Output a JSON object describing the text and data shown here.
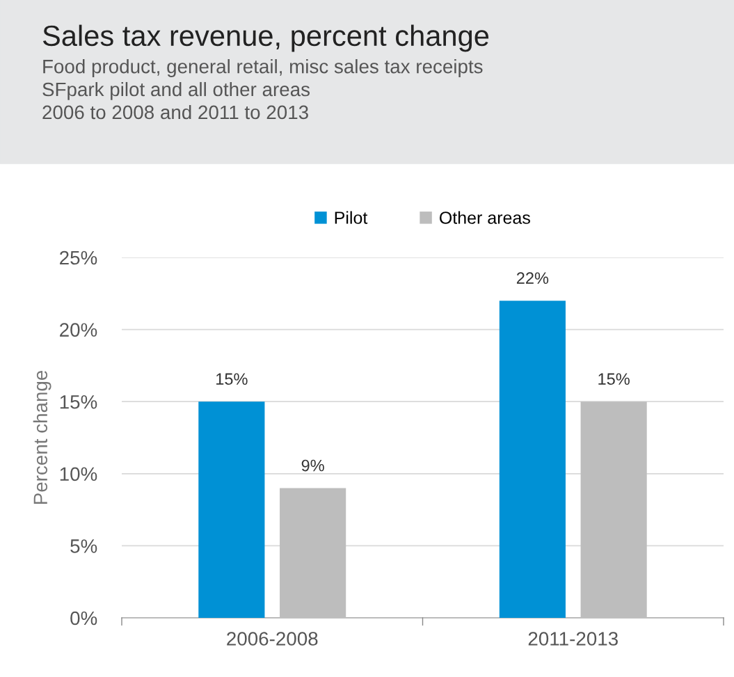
{
  "chart_data": {
    "type": "bar",
    "title": "Sales tax revenue, percent change",
    "subtitle": "Food product, general retail, misc sales tax receipts\nSFpark pilot and all other areas\n2006 to 2008 and 2011 to 2013",
    "ylabel": "Percent change",
    "categories": [
      "2006-2008",
      "2011-2013"
    ],
    "series": [
      {
        "name": "Pilot",
        "color": "#0091d5",
        "values": [
          15,
          22
        ],
        "value_labels": [
          "15%",
          "22%"
        ]
      },
      {
        "name": "Other areas",
        "color": "#bdbdbd",
        "values": [
          9,
          15
        ],
        "value_labels": [
          "9%",
          "15%"
        ]
      }
    ],
    "ylim": [
      0,
      25
    ],
    "yticks": [
      {
        "value": 0,
        "label": "0%"
      },
      {
        "value": 5,
        "label": "5%"
      },
      {
        "value": 10,
        "label": "10%"
      },
      {
        "value": 15,
        "label": "15%"
      },
      {
        "value": 20,
        "label": "20%"
      },
      {
        "value": 25,
        "label": "25%"
      }
    ],
    "grid": "y",
    "legend": "top"
  }
}
